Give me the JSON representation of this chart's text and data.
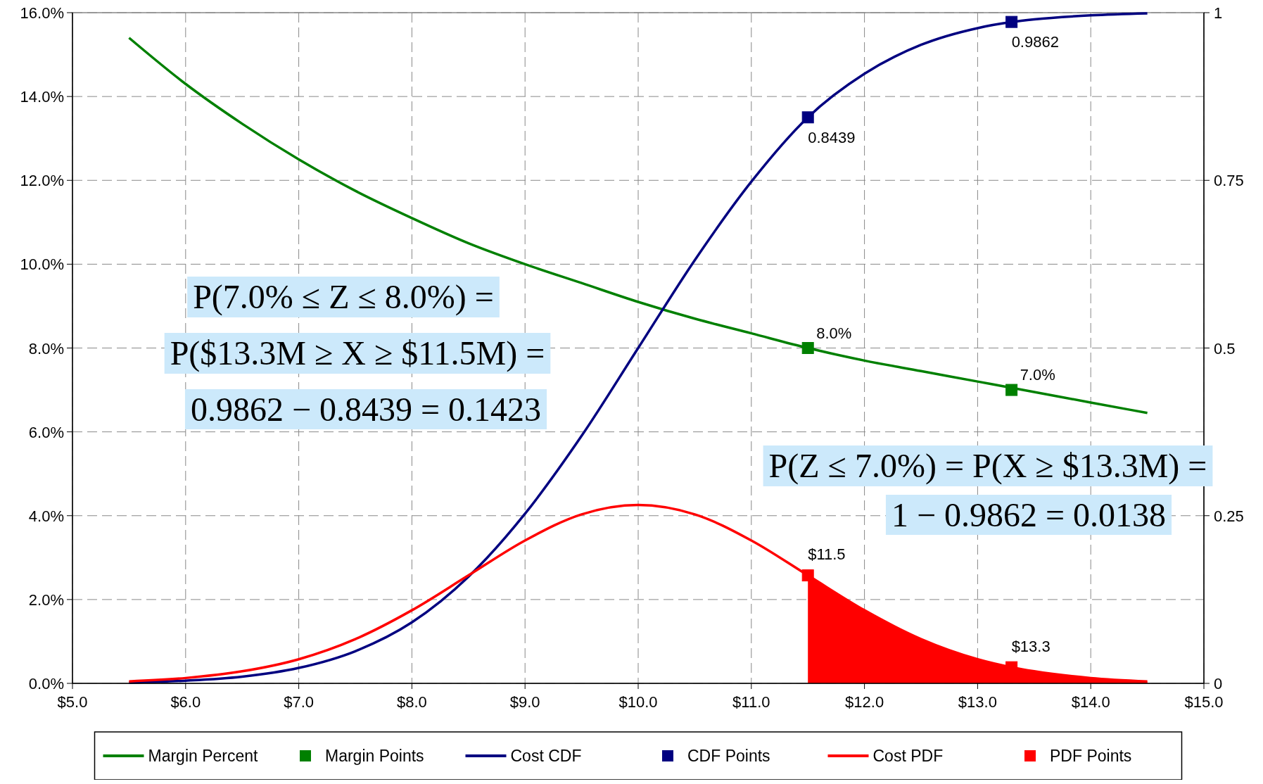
{
  "chart_data": {
    "type": "line",
    "xlim": [
      5,
      15
    ],
    "xticks": [
      {
        "value": 5,
        "label": "$5.0"
      },
      {
        "value": 6,
        "label": "$6.0"
      },
      {
        "value": 7,
        "label": "$7.0"
      },
      {
        "value": 8,
        "label": "$8.0"
      },
      {
        "value": 9,
        "label": "$9.0"
      },
      {
        "value": 10,
        "label": "$10.0"
      },
      {
        "value": 11,
        "label": "$11.0"
      },
      {
        "value": 12,
        "label": "$12.0"
      },
      {
        "value": 13,
        "label": "$13.0"
      },
      {
        "value": 14,
        "label": "$14.0"
      },
      {
        "value": 15,
        "label": "$15.0"
      }
    ],
    "ylim": [
      0,
      16
    ],
    "yticks": [
      {
        "value": 0,
        "label": "0.0%"
      },
      {
        "value": 2,
        "label": "2.0%"
      },
      {
        "value": 4,
        "label": "4.0%"
      },
      {
        "value": 6,
        "label": "6.0%"
      },
      {
        "value": 8,
        "label": "8.0%"
      },
      {
        "value": 10,
        "label": "10.0%"
      },
      {
        "value": 12,
        "label": "12.0%"
      },
      {
        "value": 14,
        "label": "14.0%"
      },
      {
        "value": 16,
        "label": "16.0%"
      }
    ],
    "y2lim": [
      0,
      1
    ],
    "y2ticks": [
      0,
      0.25,
      0.5,
      0.75,
      1
    ],
    "grid": true,
    "legend": "bottom",
    "series": [
      {
        "name": "Margin Percent",
        "color": "#008000",
        "x": [
          5.5,
          6,
          6.5,
          7,
          7.5,
          8,
          8.5,
          9,
          9.5,
          10,
          10.5,
          11,
          11.5,
          12,
          12.5,
          13,
          13.5,
          14,
          14.5
        ],
        "values": [
          15.4,
          14.3,
          13.35,
          12.5,
          11.75,
          11.1,
          10.5,
          10.0,
          9.55,
          9.1,
          8.7,
          8.35,
          8.0,
          7.7,
          7.45,
          7.2,
          6.95,
          6.7,
          6.45
        ]
      },
      {
        "name": "Margin Points",
        "type": "scatter",
        "marker": "square",
        "color": "#008000",
        "x": [
          11.5,
          13.3
        ],
        "values": [
          8.0,
          7.0
        ],
        "value_labels": [
          "8.0%",
          "7.0%"
        ]
      },
      {
        "name": "Cost CDF",
        "axis": "y2",
        "color": "#000080",
        "x": [
          5.5,
          6,
          6.5,
          7,
          7.5,
          8,
          8.5,
          9,
          9.5,
          10,
          10.5,
          11,
          11.5,
          12,
          12.5,
          13,
          13.3,
          13.5,
          14,
          14.5
        ],
        "values": [
          0.001,
          0.004,
          0.01,
          0.023,
          0.048,
          0.091,
          0.159,
          0.253,
          0.369,
          0.5,
          0.631,
          0.748,
          0.844,
          0.909,
          0.952,
          0.977,
          0.986,
          0.99,
          0.996,
          0.999
        ]
      },
      {
        "name": "CDF Points",
        "type": "scatter",
        "marker": "square",
        "axis": "y2",
        "color": "#000080",
        "x": [
          11.5,
          13.3
        ],
        "values": [
          0.8439,
          0.9862
        ],
        "value_labels": [
          "0.8439",
          "0.9862"
        ]
      },
      {
        "name": "Cost PDF",
        "axis": "y2",
        "color": "#ff0000",
        "x": [
          5.5,
          6,
          6.5,
          7,
          7.5,
          8,
          8.5,
          9,
          9.5,
          10,
          10.5,
          11,
          11.5,
          12,
          12.5,
          13,
          13.3,
          13.5,
          14,
          14.5
        ],
        "values": [
          0.003,
          0.008,
          0.018,
          0.036,
          0.066,
          0.109,
          0.161,
          0.213,
          0.252,
          0.266,
          0.252,
          0.213,
          0.161,
          0.109,
          0.066,
          0.036,
          0.024,
          0.018,
          0.008,
          0.003
        ]
      },
      {
        "name": "PDF Points",
        "type": "scatter",
        "marker": "square",
        "axis": "y2",
        "color": "#ff0000",
        "x": [
          11.5,
          13.3
        ],
        "values": [
          0.161,
          0.024
        ]
      },
      {
        "type": "area",
        "axis": "y2",
        "color": "#ff0000",
        "x": [
          11.5,
          12,
          12.5,
          13,
          13.3,
          13.5,
          14,
          14.5
        ],
        "values": [
          0.161,
          0.109,
          0.066,
          0.036,
          0.024,
          0.018,
          0.008,
          0.003
        ]
      }
    ],
    "annotations": [
      "P(7.0% ≤ Z ≤ 8.0%) =",
      "P($13.3M ≥ X ≥ $11.5M) =",
      "0.9862 − 0.8439 = 0.1423",
      "P(Z ≤ 7.0%) = P(X ≥ $13.3M) =",
      "1 − 0.9862 = 0.0138",
      {
        "text": "$11.5",
        "x": 11.5,
        "y": 2.58
      },
      {
        "text": "$13.3",
        "x": 13.3,
        "y": 0.38
      }
    ]
  }
}
